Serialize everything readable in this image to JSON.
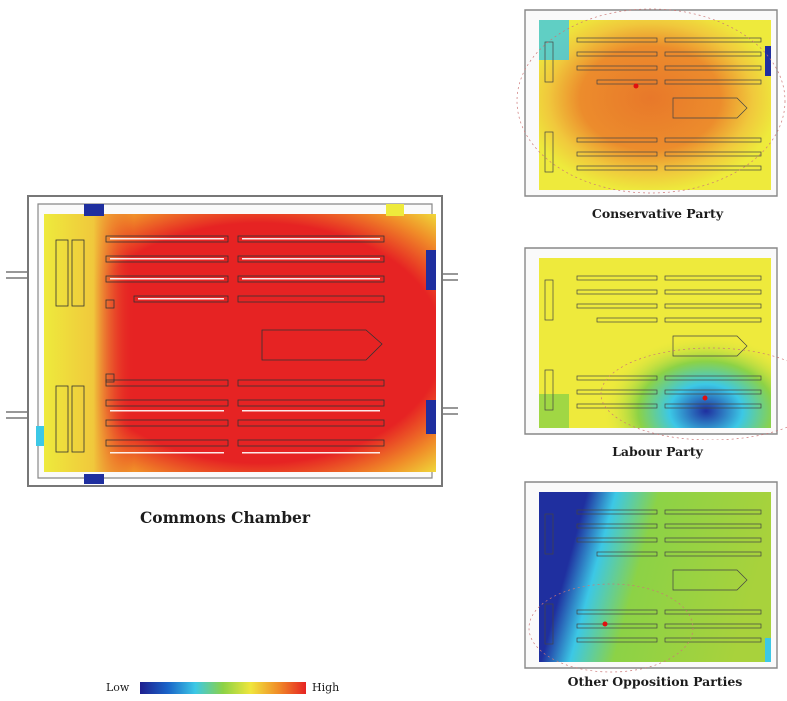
{
  "panels": [
    {
      "key": "main",
      "caption": "Commons Chamber",
      "heat": "red"
    },
    {
      "key": "con",
      "caption": "Conservative Party",
      "heat": "orange-center"
    },
    {
      "key": "lab",
      "caption": "Labour Party",
      "heat": "yellow-lowright"
    },
    {
      "key": "opp",
      "caption": "Other Opposition Parties",
      "heat": "green-blueleft"
    }
  ],
  "legend": {
    "low_label": "Low",
    "high_label": "High",
    "colors": [
      "#1f1f8f",
      "#1a64c8",
      "#3cc8e6",
      "#8cd246",
      "#f0e63c",
      "#f08c28",
      "#e62323"
    ]
  },
  "colors": {
    "red": "#e62323",
    "orange": "#e8782a",
    "yellow": "#eeea3c",
    "green": "#a8d23c",
    "cyan": "#3cc8e6",
    "blue": "#1f2f9f",
    "navy": "#1a1a80",
    "point": "#e01010"
  }
}
